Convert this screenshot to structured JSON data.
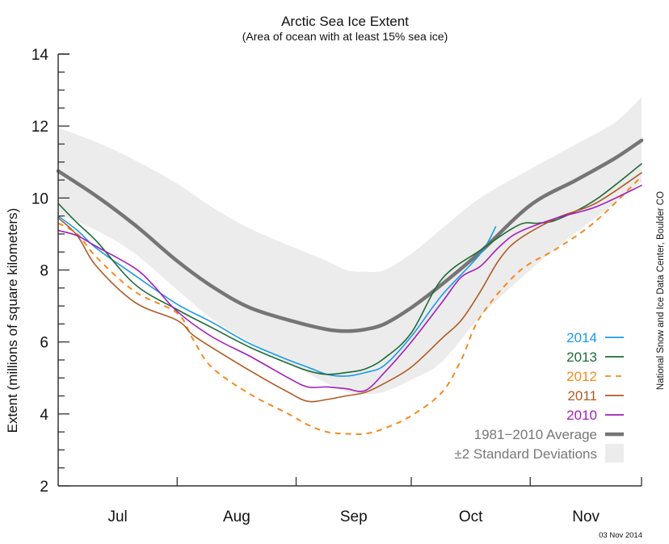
{
  "chart_data": {
    "type": "line",
    "title": "Arctic Sea Ice Extent",
    "subtitle": "(Area of ocean with at least 15% sea ice)",
    "xlabel": "",
    "ylabel": "Extent (millions of square kilometers)",
    "ylim": [
      2,
      14
    ],
    "yticks": [
      2,
      4,
      6,
      8,
      10,
      12,
      14
    ],
    "y_minor_step": 0.5,
    "x_unit": "days since Jul 1",
    "xlim": [
      0,
      152
    ],
    "month_boundaries": [
      0,
      31,
      62,
      92,
      123,
      152
    ],
    "month_labels": [
      "Jul",
      "Aug",
      "Sep",
      "Oct",
      "Nov"
    ],
    "grid": false,
    "legend_position": "bottom-right",
    "credit": "National Snow and Ice Data Center, Boulder CO",
    "date_stamp": "03 Nov 2014",
    "band": {
      "name": "±2 Standard Deviations",
      "color": "#ececec",
      "x": [
        0,
        10,
        20,
        31,
        40,
        50,
        62,
        70,
        75,
        80,
        85,
        92,
        100,
        110,
        123,
        135,
        145,
        152
      ],
      "upper": [
        11.95,
        11.55,
        11.05,
        10.4,
        9.75,
        9.15,
        8.6,
        8.25,
        8.0,
        7.95,
        8.0,
        8.45,
        9.15,
        10.0,
        10.8,
        11.5,
        12.1,
        12.8
      ],
      "lower": [
        9.55,
        9.1,
        8.45,
        7.45,
        6.65,
        6.0,
        5.3,
        4.85,
        4.62,
        4.55,
        4.62,
        4.95,
        5.45,
        6.7,
        8.0,
        9.05,
        9.85,
        10.45
      ]
    },
    "series": [
      {
        "name": "1981−2010 Average",
        "color": "#757575",
        "style": "thick",
        "x": [
          0,
          10,
          20,
          31,
          40,
          50,
          62,
          70,
          75,
          80,
          85,
          92,
          100,
          110,
          123,
          135,
          145,
          152
        ],
        "values": [
          10.75,
          10.05,
          9.25,
          8.25,
          7.55,
          6.95,
          6.55,
          6.35,
          6.3,
          6.35,
          6.5,
          6.95,
          7.6,
          8.5,
          9.8,
          10.5,
          11.1,
          11.6
        ]
      },
      {
        "name": "2014",
        "color": "#1a9ae8",
        "style": "solid",
        "x": [
          0,
          5,
          10,
          20,
          31,
          40,
          50,
          60,
          65,
          70,
          75,
          80,
          85,
          92,
          100,
          110,
          114
        ],
        "values": [
          9.5,
          9.1,
          8.6,
          7.85,
          7.05,
          6.55,
          5.95,
          5.5,
          5.3,
          5.1,
          5.05,
          5.15,
          5.35,
          6.15,
          7.3,
          8.45,
          9.2
        ]
      },
      {
        "name": "2013",
        "color": "#1f6b36",
        "style": "solid",
        "x": [
          0,
          5,
          10,
          20,
          31,
          40,
          50,
          60,
          65,
          70,
          75,
          80,
          85,
          92,
          100,
          110,
          120,
          125,
          130,
          140,
          152
        ],
        "values": [
          9.85,
          9.3,
          8.8,
          7.6,
          6.9,
          6.4,
          5.85,
          5.4,
          5.2,
          5.1,
          5.15,
          5.25,
          5.55,
          6.25,
          7.75,
          8.55,
          9.25,
          9.3,
          9.4,
          9.95,
          10.95
        ]
      },
      {
        "name": "2012",
        "color": "#f58a1f",
        "style": "dashed",
        "x": [
          0,
          5,
          10,
          20,
          31,
          35,
          40,
          50,
          60,
          65,
          70,
          75,
          80,
          85,
          92,
          100,
          105,
          110,
          120,
          130,
          140,
          152
        ],
        "values": [
          9.3,
          9.0,
          8.35,
          7.4,
          6.8,
          6.1,
          5.3,
          4.55,
          4.0,
          3.7,
          3.5,
          3.45,
          3.45,
          3.6,
          3.95,
          4.6,
          5.5,
          6.7,
          7.95,
          8.6,
          9.35,
          10.6
        ]
      },
      {
        "name": "2011",
        "color": "#b15a23",
        "style": "solid",
        "x": [
          0,
          5,
          10,
          20,
          31,
          35,
          40,
          50,
          60,
          65,
          70,
          75,
          80,
          85,
          92,
          100,
          105,
          110,
          115,
          120,
          130,
          140,
          152
        ],
        "values": [
          9.45,
          8.95,
          8.1,
          7.1,
          6.6,
          6.2,
          5.85,
          5.2,
          4.6,
          4.35,
          4.4,
          4.5,
          4.6,
          4.85,
          5.3,
          6.1,
          6.6,
          7.4,
          8.3,
          8.85,
          9.45,
          9.85,
          10.7
        ]
      },
      {
        "name": "2010",
        "color": "#a31ebc",
        "style": "solid",
        "x": [
          0,
          5,
          10,
          20,
          25,
          31,
          40,
          50,
          60,
          65,
          70,
          75,
          80,
          85,
          92,
          100,
          105,
          110,
          115,
          120,
          130,
          140,
          152
        ],
        "values": [
          9.1,
          8.95,
          8.65,
          8.05,
          7.55,
          6.85,
          6.15,
          5.6,
          5.0,
          4.75,
          4.75,
          4.7,
          4.65,
          5.15,
          6.0,
          7.1,
          7.8,
          8.1,
          8.65,
          9.05,
          9.45,
          9.75,
          10.35
        ]
      }
    ]
  }
}
